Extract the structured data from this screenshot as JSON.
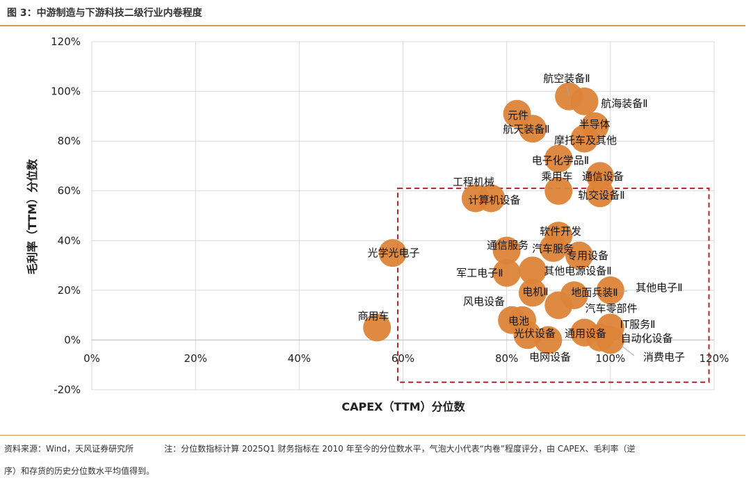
{
  "header": {
    "title": "图 3：中游制造与下游科技二级行业内卷程度"
  },
  "footer": {
    "source": "资料来源：Wind，天风证券研究所",
    "note_line1": "注：分位数指标计算 2025Q1 财务指标在 2010 年至今的分位数水平，气泡大小代表“内卷”程度评分，由 CAPEX、毛利率（逆",
    "note_line2": "序）和存货的历史分位数水平均值得到。"
  },
  "chart_data": {
    "type": "scatter",
    "title": "",
    "xlabel": "CAPEX（TTM）分位数",
    "ylabel": "毛利率（TTM）分位数",
    "xlim": [
      0,
      1.2
    ],
    "ylim": [
      -0.2,
      1.2
    ],
    "x_ticks": [
      "0%",
      "20%",
      "40%",
      "60%",
      "80%",
      "100%",
      "120%"
    ],
    "y_ticks": [
      "-20%",
      "0%",
      "20%",
      "40%",
      "60%",
      "80%",
      "100%",
      "120%"
    ],
    "grid": true,
    "bubble_color": "#dd8439",
    "highlight_box": {
      "x": [
        0.59,
        1.19
      ],
      "y": [
        -0.17,
        0.61
      ],
      "color": "#b22222",
      "style": "dashed"
    },
    "points": [
      {
        "name": "航空装备Ⅱ",
        "x": 0.92,
        "y": 0.98
      },
      {
        "name": "航海装备Ⅱ",
        "x": 0.95,
        "y": 0.96
      },
      {
        "name": "元件",
        "x": 0.82,
        "y": 0.91
      },
      {
        "name": "航天装备Ⅱ",
        "x": 0.85,
        "y": 0.85
      },
      {
        "name": "半导体",
        "x": 0.97,
        "y": 0.86
      },
      {
        "name": "摩托车及其他",
        "x": 0.95,
        "y": 0.81
      },
      {
        "name": "电子化学品Ⅱ",
        "x": 0.9,
        "y": 0.73
      },
      {
        "name": "乘用车",
        "x": 0.9,
        "y": 0.6
      },
      {
        "name": "通信设备",
        "x": 0.98,
        "y": 0.66
      },
      {
        "name": "轨交设备Ⅱ",
        "x": 0.98,
        "y": 0.59
      },
      {
        "name": "工程机械",
        "x": 0.74,
        "y": 0.57
      },
      {
        "name": "计算机设备",
        "x": 0.77,
        "y": 0.57
      },
      {
        "name": "软件开发",
        "x": 0.9,
        "y": 0.42
      },
      {
        "name": "通信服务",
        "x": 0.8,
        "y": 0.36
      },
      {
        "name": "汽车服务",
        "x": 0.89,
        "y": 0.37
      },
      {
        "name": "专用设备",
        "x": 0.94,
        "y": 0.34
      },
      {
        "name": "光学光电子",
        "x": 0.58,
        "y": 0.35
      },
      {
        "name": "其他电源设备Ⅱ",
        "x": 0.85,
        "y": 0.28
      },
      {
        "name": "军工电子Ⅱ",
        "x": 0.8,
        "y": 0.27
      },
      {
        "name": "电机Ⅱ",
        "x": 0.85,
        "y": 0.19
      },
      {
        "name": "地面兵装Ⅱ",
        "x": 0.93,
        "y": 0.18
      },
      {
        "name": "其他电子Ⅱ",
        "x": 1.0,
        "y": 0.2
      },
      {
        "name": "汽车零部件",
        "x": 0.9,
        "y": 0.14
      },
      {
        "name": "风电设备",
        "x": 0.81,
        "y": 0.08
      },
      {
        "name": "电池",
        "x": 0.83,
        "y": 0.08
      },
      {
        "name": "IT服务Ⅱ",
        "x": 1.0,
        "y": 0.05
      },
      {
        "name": "光伏设备",
        "x": 0.84,
        "y": 0.02
      },
      {
        "name": "通用设备",
        "x": 0.95,
        "y": 0.03
      },
      {
        "name": "自动化设备",
        "x": 0.98,
        "y": 0.01
      },
      {
        "name": "电网设备",
        "x": 0.88,
        "y": 0.0
      },
      {
        "name": "消费电子",
        "x": 1.0,
        "y": 0.0
      },
      {
        "name": "商用车",
        "x": 0.55,
        "y": 0.05
      }
    ]
  }
}
